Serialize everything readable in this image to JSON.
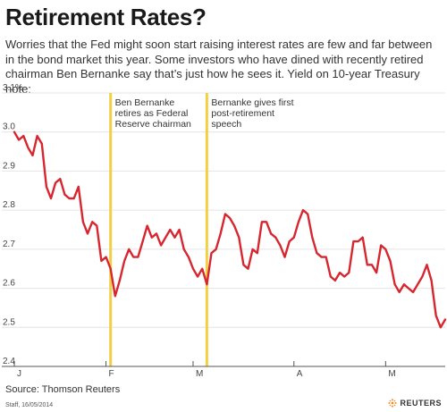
{
  "title": "Retirement Rates?",
  "subtitle": "Worries that the Fed might soon start raising interest rates are few and far between in the bond market this year. Some investors who have dined with recently retired chairman Ben Bernanke say that’s just how he sees it. Yield on 10-year Treasury note:",
  "source": "Source: Thomson Reuters",
  "credit": "Staff, 16/05/2014",
  "brand": "REUTERS",
  "colors": {
    "line": "#d7262f",
    "marker": "#f3cf45",
    "grid": "#e4e4e4",
    "axis": "#555555"
  },
  "chart_data": {
    "type": "line",
    "ylim": [
      2.4,
      3.1
    ],
    "yticks": [
      2.4,
      2.5,
      2.6,
      2.7,
      2.8,
      2.9,
      3.0,
      3.1
    ],
    "ytick_labels": [
      "2.4",
      "2.5",
      "2.6",
      "2.7",
      "2.8",
      "2.9",
      "3.0",
      "3.1%"
    ],
    "xticks": [
      {
        "label": "J",
        "index": 0
      },
      {
        "label": "F",
        "index": 20
      },
      {
        "label": "M",
        "index": 39
      },
      {
        "label": "A",
        "index": 61
      },
      {
        "label": "M",
        "index": 81
      }
    ],
    "grid": true,
    "values": [
      3.0,
      2.98,
      2.99,
      2.96,
      2.94,
      2.99,
      2.97,
      2.86,
      2.83,
      2.87,
      2.88,
      2.84,
      2.83,
      2.83,
      2.86,
      2.77,
      2.74,
      2.77,
      2.76,
      2.67,
      2.68,
      2.65,
      2.58,
      2.62,
      2.67,
      2.7,
      2.68,
      2.68,
      2.72,
      2.76,
      2.73,
      2.74,
      2.71,
      2.73,
      2.75,
      2.73,
      2.75,
      2.7,
      2.68,
      2.65,
      2.63,
      2.65,
      2.61,
      2.69,
      2.7,
      2.74,
      2.79,
      2.78,
      2.76,
      2.73,
      2.66,
      2.65,
      2.7,
      2.69,
      2.77,
      2.77,
      2.74,
      2.73,
      2.71,
      2.68,
      2.72,
      2.73,
      2.77,
      2.8,
      2.79,
      2.73,
      2.69,
      2.68,
      2.68,
      2.63,
      2.62,
      2.64,
      2.63,
      2.64,
      2.72,
      2.72,
      2.73,
      2.66,
      2.66,
      2.64,
      2.71,
      2.7,
      2.67,
      2.61,
      2.59,
      2.61,
      2.6,
      2.59,
      2.61,
      2.63,
      2.66,
      2.62,
      2.53,
      2.5,
      2.52
    ],
    "annotations": [
      {
        "index": 21,
        "lines": [
          "Ben Bernanke",
          "retires as Federal",
          "Reserve chairman"
        ]
      },
      {
        "index": 42,
        "lines": [
          "Bernanke gives first",
          "post-retirement",
          "speech"
        ]
      }
    ]
  }
}
